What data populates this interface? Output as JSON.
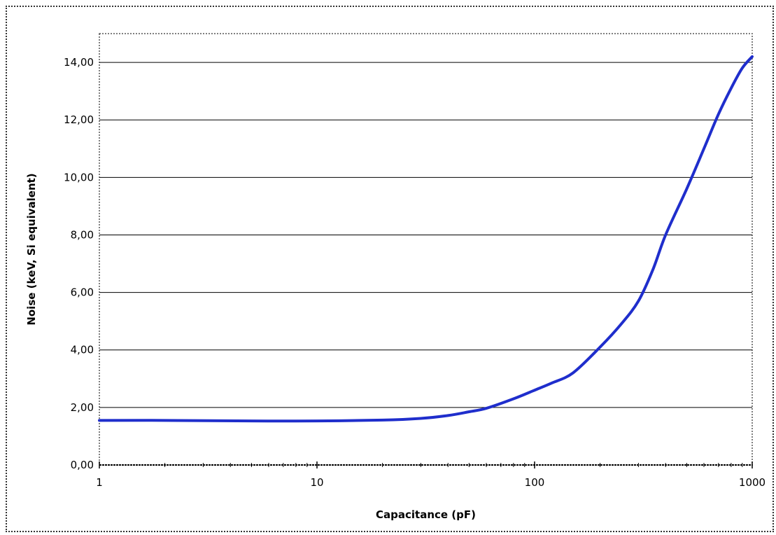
{
  "chart_data": {
    "type": "line",
    "title": "",
    "xlabel": "Capacitance (pF)",
    "ylabel": "Noise (keV, Si equivalent)",
    "x_scale": "log",
    "xlim": [
      1,
      1000
    ],
    "ylim": [
      0,
      15
    ],
    "x_ticks": [
      1,
      10,
      100,
      1000
    ],
    "x_tick_labels": [
      "1",
      "10",
      "100",
      "1000"
    ],
    "y_ticks": [
      0,
      2,
      4,
      6,
      8,
      10,
      12,
      14
    ],
    "y_tick_labels": [
      "0,00",
      "2,00",
      "4,00",
      "6,00",
      "8,00",
      "10,00",
      "12,00",
      "14,00"
    ],
    "grid": "horizontal",
    "legend": "none",
    "series": [
      {
        "color": "#1f2ecc",
        "x": [
          1,
          2,
          5,
          10,
          20,
          30,
          40,
          50,
          60,
          80,
          100,
          120,
          150,
          200,
          250,
          300,
          350,
          400,
          500,
          600,
          700,
          800,
          900,
          1000
        ],
        "y": [
          1.55,
          1.55,
          1.53,
          1.53,
          1.56,
          1.62,
          1.72,
          1.85,
          1.97,
          2.3,
          2.6,
          2.85,
          3.2,
          4.1,
          4.9,
          5.7,
          6.8,
          8.0,
          9.6,
          11.0,
          12.2,
          13.1,
          13.8,
          14.2
        ]
      }
    ]
  }
}
